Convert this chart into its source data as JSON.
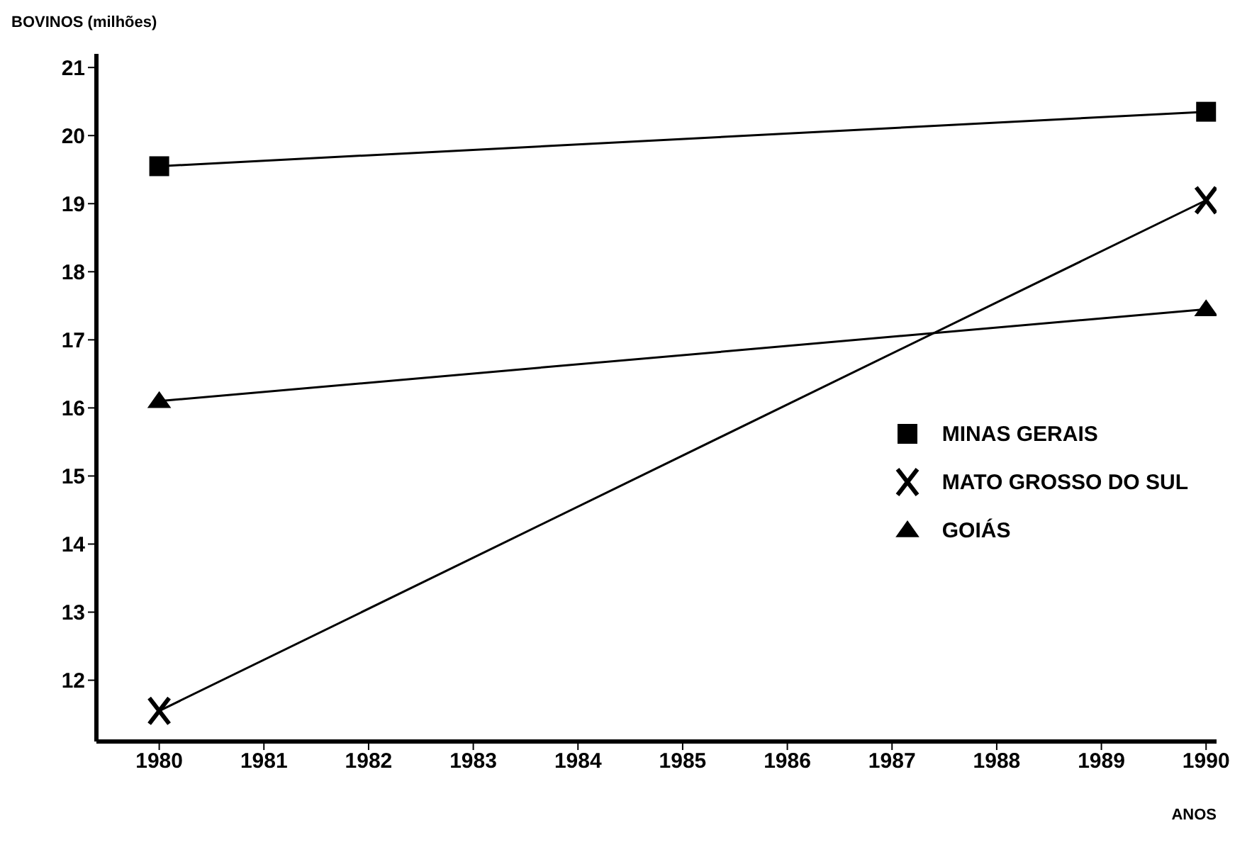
{
  "chart_data": {
    "type": "line",
    "ylabel": "BOVINOS (milhões)",
    "xlabel": "ANOS",
    "x": [
      1980,
      1990
    ],
    "xlim": [
      1979.4,
      1990.1
    ],
    "xticks": [
      1980,
      1981,
      1982,
      1983,
      1984,
      1985,
      1986,
      1987,
      1988,
      1989,
      1990
    ],
    "ylim": [
      11.1,
      21.2
    ],
    "yticks": [
      12,
      13,
      14,
      15,
      16,
      17,
      18,
      19,
      20,
      21
    ],
    "series": [
      {
        "name": "MINAS  GERAIS",
        "color": "#000000",
        "marker": "square",
        "values": [
          19.55,
          20.35
        ]
      },
      {
        "name": "MATO GROSSO DO SUL",
        "color": "#000000",
        "marker": "cross",
        "values": [
          11.55,
          19.05
        ]
      },
      {
        "name": "GOIÁS",
        "color": "#000000",
        "marker": "triangle",
        "values": [
          16.1,
          17.45
        ]
      }
    ],
    "legend": "bottom right",
    "grid": false,
    "line_style": "solid"
  }
}
